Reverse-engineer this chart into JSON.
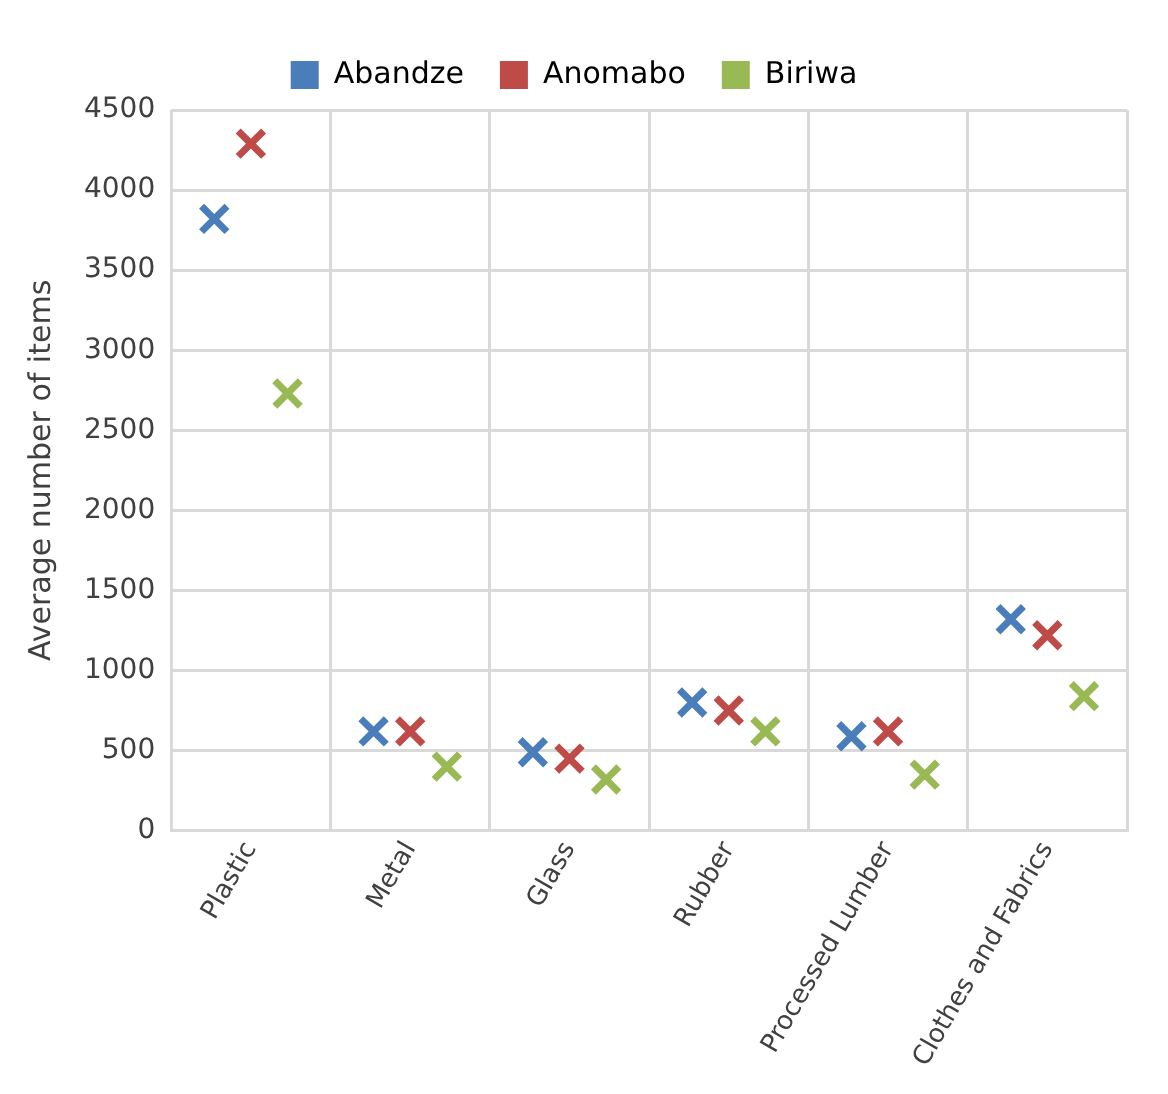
{
  "chart_data": {
    "type": "scatter",
    "ylabel": "Average number of items",
    "categories": [
      "Plastic",
      "Metal",
      "Glass",
      "Rubber",
      "Processed Lumber",
      "Clothes and Fabrics"
    ],
    "series": [
      {
        "name": "Abandze",
        "color": "#4a7ebb",
        "values": [
          3820,
          620,
          490,
          800,
          590,
          1320
        ]
      },
      {
        "name": "Anomabo",
        "color": "#be4b48",
        "values": [
          4290,
          620,
          450,
          750,
          620,
          1220
        ]
      },
      {
        "name": "Biriwa",
        "color": "#98b954",
        "values": [
          2730,
          400,
          320,
          620,
          350,
          840
        ]
      }
    ],
    "ylim": [
      0,
      4500
    ],
    "yticks": [
      0,
      500,
      1000,
      1500,
      2000,
      2500,
      3000,
      3500,
      4000,
      4500
    ],
    "grid": true,
    "legend": "top",
    "marker": "cross"
  }
}
